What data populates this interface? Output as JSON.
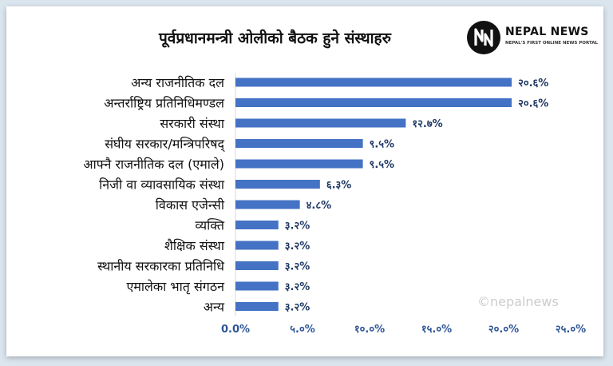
{
  "header": {
    "title": "पूर्वप्रधानमन्त्री ओलीको बैठक हुने संस्थाहरु"
  },
  "brand": {
    "name": "NEPAL NEWS",
    "tagline": "NEPAL'S FIRST ONLINE NEWS PORTAL",
    "watermark": "©nepalnews",
    "mark_color": "#111111"
  },
  "colors": {
    "bar": "#4472c4",
    "label": "#1f3864",
    "axis": "#2e5597",
    "gridline": "#d9d9d9"
  },
  "chart_data": {
    "type": "bar",
    "orientation": "horizontal",
    "categories": [
      "अन्य राजनीतिक दल",
      "अन्तर्राष्ट्रिय प्रतिनिधिमण्डल",
      "सरकारी संस्था",
      "संघीय सरकार/मन्त्रिपरिषद्",
      "आफ्नै राजनीतिक दल (एमाले)",
      "निजी वा व्यावसायिक संस्था",
      "विकास एजेन्सी",
      "व्यक्ति",
      "शैक्षिक संस्था",
      "स्थानीय सरकारका प्रतिनिधि",
      "एमालेका भातृ संगठन",
      "अन्य"
    ],
    "values": [
      20.6,
      20.6,
      12.7,
      9.5,
      9.5,
      6.3,
      4.8,
      3.2,
      3.2,
      3.2,
      3.2,
      3.2
    ],
    "data_labels": [
      "२०.६%",
      "२०.६%",
      "१२.७%",
      "९.५%",
      "९.५%",
      "६.३%",
      "४.८%",
      "३.२%",
      "३.२%",
      "३.२%",
      "३.२%",
      "३.२%"
    ],
    "x_ticks": [
      0,
      5,
      10,
      15,
      20,
      25
    ],
    "x_tick_labels": [
      "0.0%",
      "५.०%",
      "१०.०%",
      "१५.०%",
      "२०.०%",
      "२५.०%"
    ],
    "xlim": [
      0,
      25
    ],
    "grid": false,
    "legend": "none"
  }
}
